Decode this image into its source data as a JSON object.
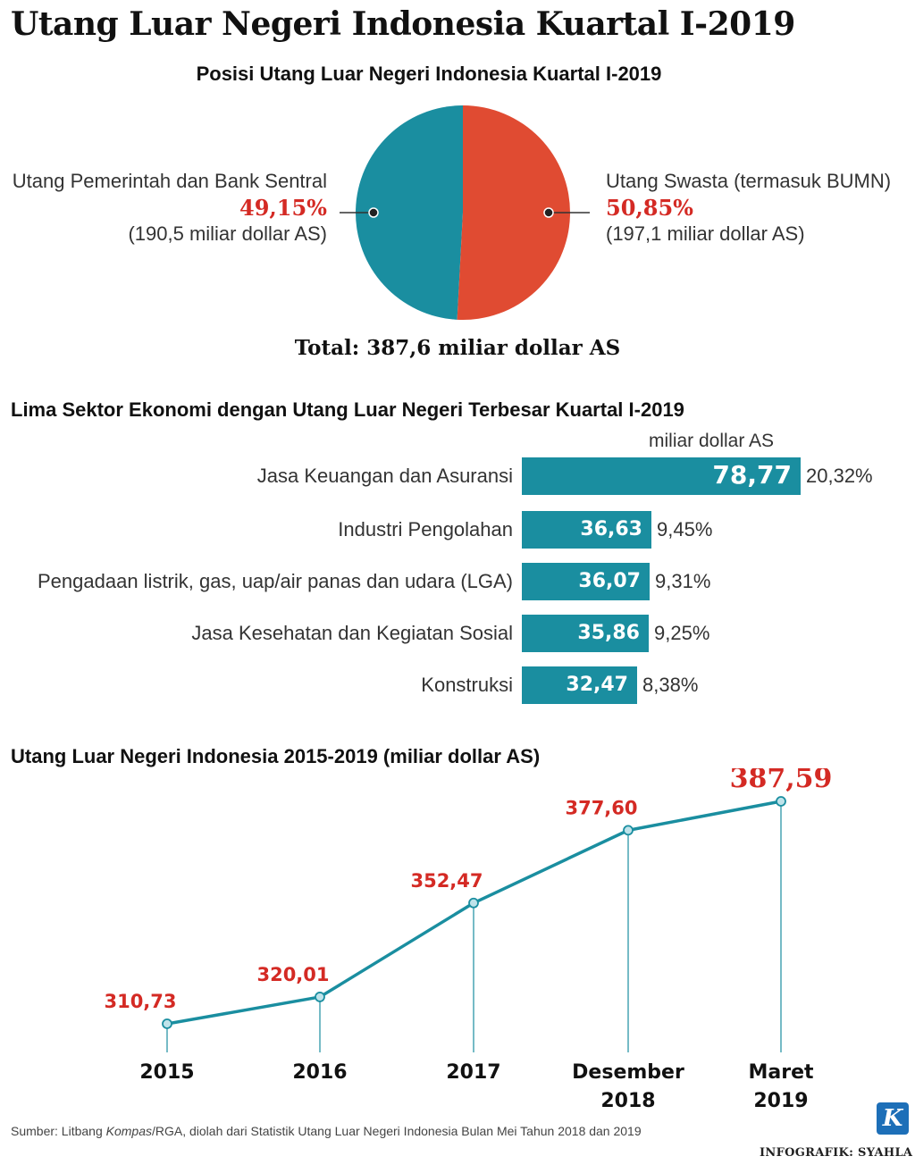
{
  "title": "Utang Luar Negeri Indonesia Kuartal I-2019",
  "pie_section": {
    "title": "Posisi Utang Luar Negeri Indonesia Kuartal I-2019",
    "total": "Total: 387,6 miliar dollar AS"
  },
  "bar_section": {
    "title": "Lima Sektor Ekonomi dengan Utang Luar Negeri Terbesar Kuartal I-2019",
    "unit": "miliar dollar AS"
  },
  "line_section": {
    "title": "Utang Luar Negeri Indonesia 2015-2019 (miliar dollar AS)"
  },
  "footer": {
    "source_before": "Sumber: Litbang ",
    "source_em": "Kompas",
    "source_after": "/RGA, diolah dari Statistik Utang Luar Negeri Indonesia Bulan Mei Tahun 2018 dan 2019",
    "logo_letter": "K",
    "credit": "INFOGRAFIK: SYAHLA"
  },
  "colors": {
    "teal": "#1a8ea0",
    "red_orange": "#e04b32",
    "highlight_red": "#d42a24"
  },
  "chart_data": [
    {
      "type": "pie",
      "title": "Posisi Utang Luar Negeri Indonesia Kuartal I-2019",
      "slices": [
        {
          "label": "Utang Pemerintah dan Bank Sentral",
          "percent": 49.15,
          "percent_label": "49,15%",
          "amount_label": "(190,5 miliar dollar AS)",
          "color": "#1a8ea0"
        },
        {
          "label": "Utang Swasta (termasuk BUMN)",
          "percent": 50.85,
          "percent_label": "50,85%",
          "amount_label": "(197,1 miliar dollar AS)",
          "color": "#e04b32"
        }
      ]
    },
    {
      "type": "bar",
      "orientation": "horizontal",
      "title": "Lima Sektor Ekonomi dengan Utang Luar Negeri Terbesar Kuartal I-2019",
      "unit": "miliar dollar AS",
      "categories": [
        "Jasa Keuangan dan Asuransi",
        "Industri Pengolahan",
        "Pengadaan listrik, gas, uap/air panas dan udara (LGA)",
        "Jasa Kesehatan dan Kegiatan Sosial",
        "Konstruksi"
      ],
      "values": [
        78.77,
        36.63,
        36.07,
        35.86,
        32.47
      ],
      "value_labels": [
        "78,77",
        "36,63",
        "36,07",
        "35,86",
        "32,47"
      ],
      "percent_labels": [
        "20,32%",
        "9,45%",
        "9,31%",
        "9,25%",
        "8,38%"
      ]
    },
    {
      "type": "line",
      "title": "Utang Luar Negeri Indonesia 2015-2019 (miliar dollar AS)",
      "x": [
        "2015",
        "2016",
        "2017",
        "Desember 2018",
        "Maret 2019"
      ],
      "x_labels": [
        [
          "2015"
        ],
        [
          "2016"
        ],
        [
          "2017"
        ],
        [
          "Desember",
          "2018"
        ],
        [
          "Maret",
          "2019"
        ]
      ],
      "values": [
        310.73,
        320.01,
        352.47,
        377.6,
        387.59
      ],
      "value_labels": [
        "310,73",
        "320,01",
        "352,47",
        "377,60",
        "387,59"
      ],
      "grid": false
    }
  ]
}
